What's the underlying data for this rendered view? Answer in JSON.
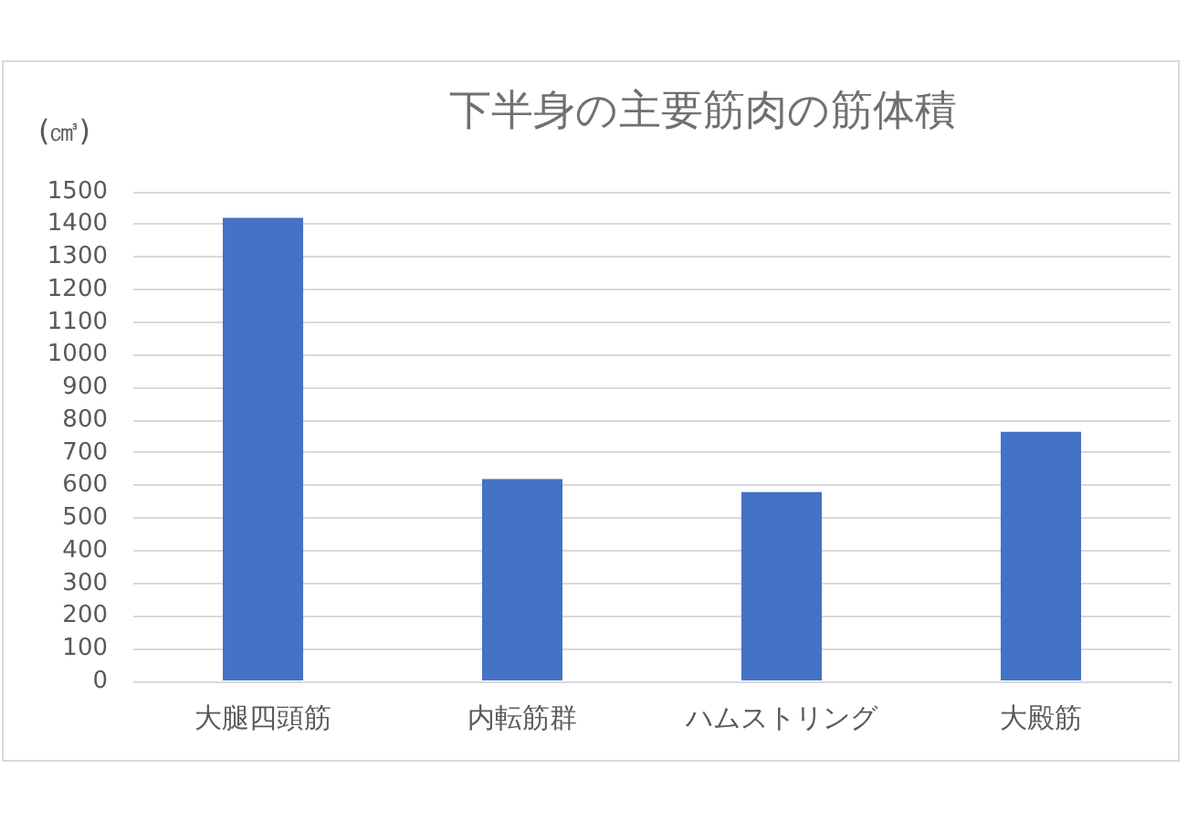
{
  "chart_data": {
    "type": "bar",
    "title": "下半身の主要筋肉の筋体積",
    "ylabel": "(㎤)",
    "categories": [
      "大腿四頭筋",
      "内転筋群",
      "ハムストリング",
      "大殿筋"
    ],
    "values": [
      1420,
      620,
      580,
      765
    ],
    "color": "#4472c4",
    "ylim": [
      0,
      1500
    ],
    "yticks": [
      0,
      100,
      200,
      300,
      400,
      500,
      600,
      700,
      800,
      900,
      1000,
      1100,
      1200,
      1300,
      1400,
      1500
    ],
    "grid": "y"
  }
}
